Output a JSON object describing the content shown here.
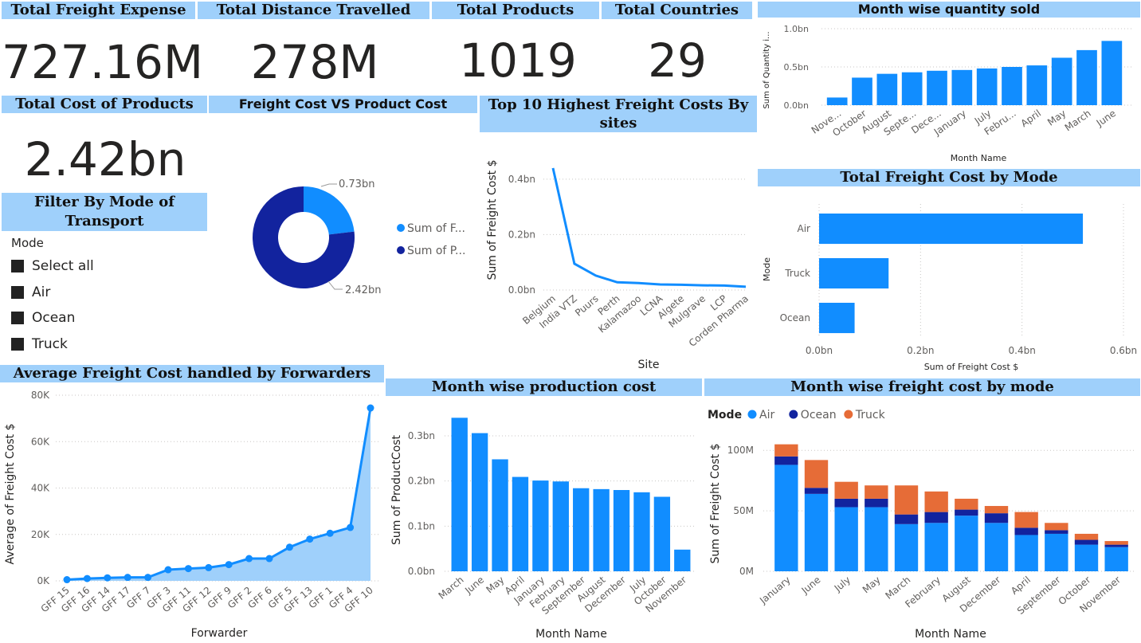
{
  "kpis": {
    "freight": {
      "title": "Total Freight Expense",
      "value": "727.16M"
    },
    "distance": {
      "title": "Total Distance Travelled",
      "value": "278M"
    },
    "products": {
      "title": "Total Products",
      "value": "1019"
    },
    "countries": {
      "title": "Total Countries",
      "value": "29"
    },
    "cost": {
      "title": "Total Cost of Products",
      "value": "2.42bn"
    }
  },
  "filter": {
    "title": "Filter By Mode of Transport",
    "field": "Mode",
    "items": [
      "Select all",
      "Air",
      "Ocean",
      "Truck"
    ]
  },
  "colors": {
    "air": "#118dff",
    "ocean": "#12239e",
    "truck": "#e66c37",
    "header": "#9fd0fb",
    "area": "#9fd0fb"
  },
  "chart_data": [
    {
      "id": "donut",
      "type": "pie",
      "title": "Freight Cost VS Product Cost",
      "labels": [
        "Sum of F...",
        "Sum of P..."
      ],
      "values": [
        0.73,
        2.42
      ],
      "data_labels": [
        "0.73bn",
        "2.42bn"
      ],
      "colors": [
        "#118dff",
        "#12239e"
      ]
    },
    {
      "id": "sites",
      "type": "line",
      "title": "Top 10 Highest Freight Costs By sites",
      "xlabel": "Site",
      "ylabel": "Sum of Freight Cost $",
      "categories": [
        "Belgium",
        "India VTZ",
        "Puurs",
        "Perth",
        "Kalamazoo",
        "LCNA",
        "Algete",
        "Mulgrave",
        "LCP",
        "Corden Pharma"
      ],
      "values": [
        0.44,
        0.095,
        0.052,
        0.028,
        0.025,
        0.02,
        0.019,
        0.017,
        0.016,
        0.012
      ],
      "yticks": [
        "0.0bn",
        "0.2bn",
        "0.4bn"
      ],
      "ylim": [
        0,
        0.46
      ]
    },
    {
      "id": "qty",
      "type": "bar",
      "title": "Month wise quantity sold",
      "xlabel": "Month Name",
      "ylabel": "Sum of Quantity i...",
      "categories": [
        "Nove...",
        "October",
        "August",
        "Septe...",
        "Dece...",
        "January",
        "July",
        "Febru...",
        "April",
        "May",
        "March",
        "June"
      ],
      "values": [
        0.1,
        0.36,
        0.41,
        0.43,
        0.45,
        0.46,
        0.48,
        0.5,
        0.52,
        0.62,
        0.72,
        0.84
      ],
      "yticks": [
        "0.0bn",
        "0.5bn",
        "1.0bn"
      ],
      "ylim": [
        0,
        1.0
      ]
    },
    {
      "id": "mode",
      "type": "bar",
      "orientation": "horizontal",
      "title": "Total Freight Cost by Mode",
      "xlabel": "Sum of Freight Cost $",
      "ylabel": "Mode",
      "categories": [
        "Air",
        "Truck",
        "Ocean"
      ],
      "values": [
        0.52,
        0.137,
        0.07
      ],
      "xticks": [
        "0.0bn",
        "0.2bn",
        "0.4bn",
        "0.6bn"
      ],
      "xlim": [
        0,
        0.6
      ]
    },
    {
      "id": "fwd",
      "type": "area",
      "title": "Average Freight Cost handled by Forwarders",
      "xlabel": "Forwarder",
      "ylabel": "Average of Freight Cost $",
      "categories": [
        "GFF 15",
        "GFF 16",
        "GFF 14",
        "GFF 17",
        "GFF 7",
        "GFF 3",
        "GFF 11",
        "GFF 12",
        "GFF 9",
        "GFF 2",
        "GFF 6",
        "GFF 5",
        "GFF 13",
        "GFF 1",
        "GFF 4",
        "GFF 10"
      ],
      "values": [
        500,
        1000,
        1300,
        1500,
        1500,
        4800,
        5300,
        5700,
        7000,
        9600,
        9600,
        14500,
        18000,
        20500,
        23000,
        74500
      ],
      "yticks": [
        "0K",
        "20K",
        "40K",
        "60K",
        "80K"
      ],
      "ylim": [
        0,
        80000
      ]
    },
    {
      "id": "prod",
      "type": "bar",
      "title": "Month wise production cost",
      "xlabel": "Month Name",
      "ylabel": "Sum of ProductCost",
      "categories": [
        "March",
        "June",
        "May",
        "April",
        "January",
        "February",
        "September",
        "August",
        "December",
        "July",
        "October",
        "November"
      ],
      "values": [
        0.34,
        0.306,
        0.248,
        0.209,
        0.201,
        0.199,
        0.184,
        0.182,
        0.18,
        0.175,
        0.165,
        0.048
      ],
      "yticks": [
        "0.0bn",
        "0.1bn",
        "0.2bn",
        "0.3bn"
      ],
      "ylim": [
        0,
        0.36
      ]
    },
    {
      "id": "stack",
      "type": "bar",
      "stacked": true,
      "title": "Month wise freight cost by mode",
      "xlabel": "Month Name",
      "ylabel": "Sum of Freight Cost $",
      "legend_title": "Mode",
      "categories": [
        "January",
        "June",
        "July",
        "May",
        "March",
        "February",
        "August",
        "December",
        "April",
        "September",
        "October",
        "November"
      ],
      "series": [
        {
          "name": "Air",
          "values": [
            88,
            64,
            53,
            53,
            39,
            40,
            46,
            40,
            30,
            31,
            22,
            20
          ]
        },
        {
          "name": "Ocean",
          "values": [
            7,
            5,
            7,
            7,
            8,
            9,
            5,
            8,
            6,
            3,
            4,
            2
          ]
        },
        {
          "name": "Truck",
          "values": [
            10,
            23,
            14,
            11,
            24,
            17,
            9,
            6,
            13,
            6,
            5,
            3
          ]
        }
      ],
      "yticks": [
        "0M",
        "50M",
        "100M"
      ],
      "ylim": [
        0,
        112
      ]
    }
  ]
}
